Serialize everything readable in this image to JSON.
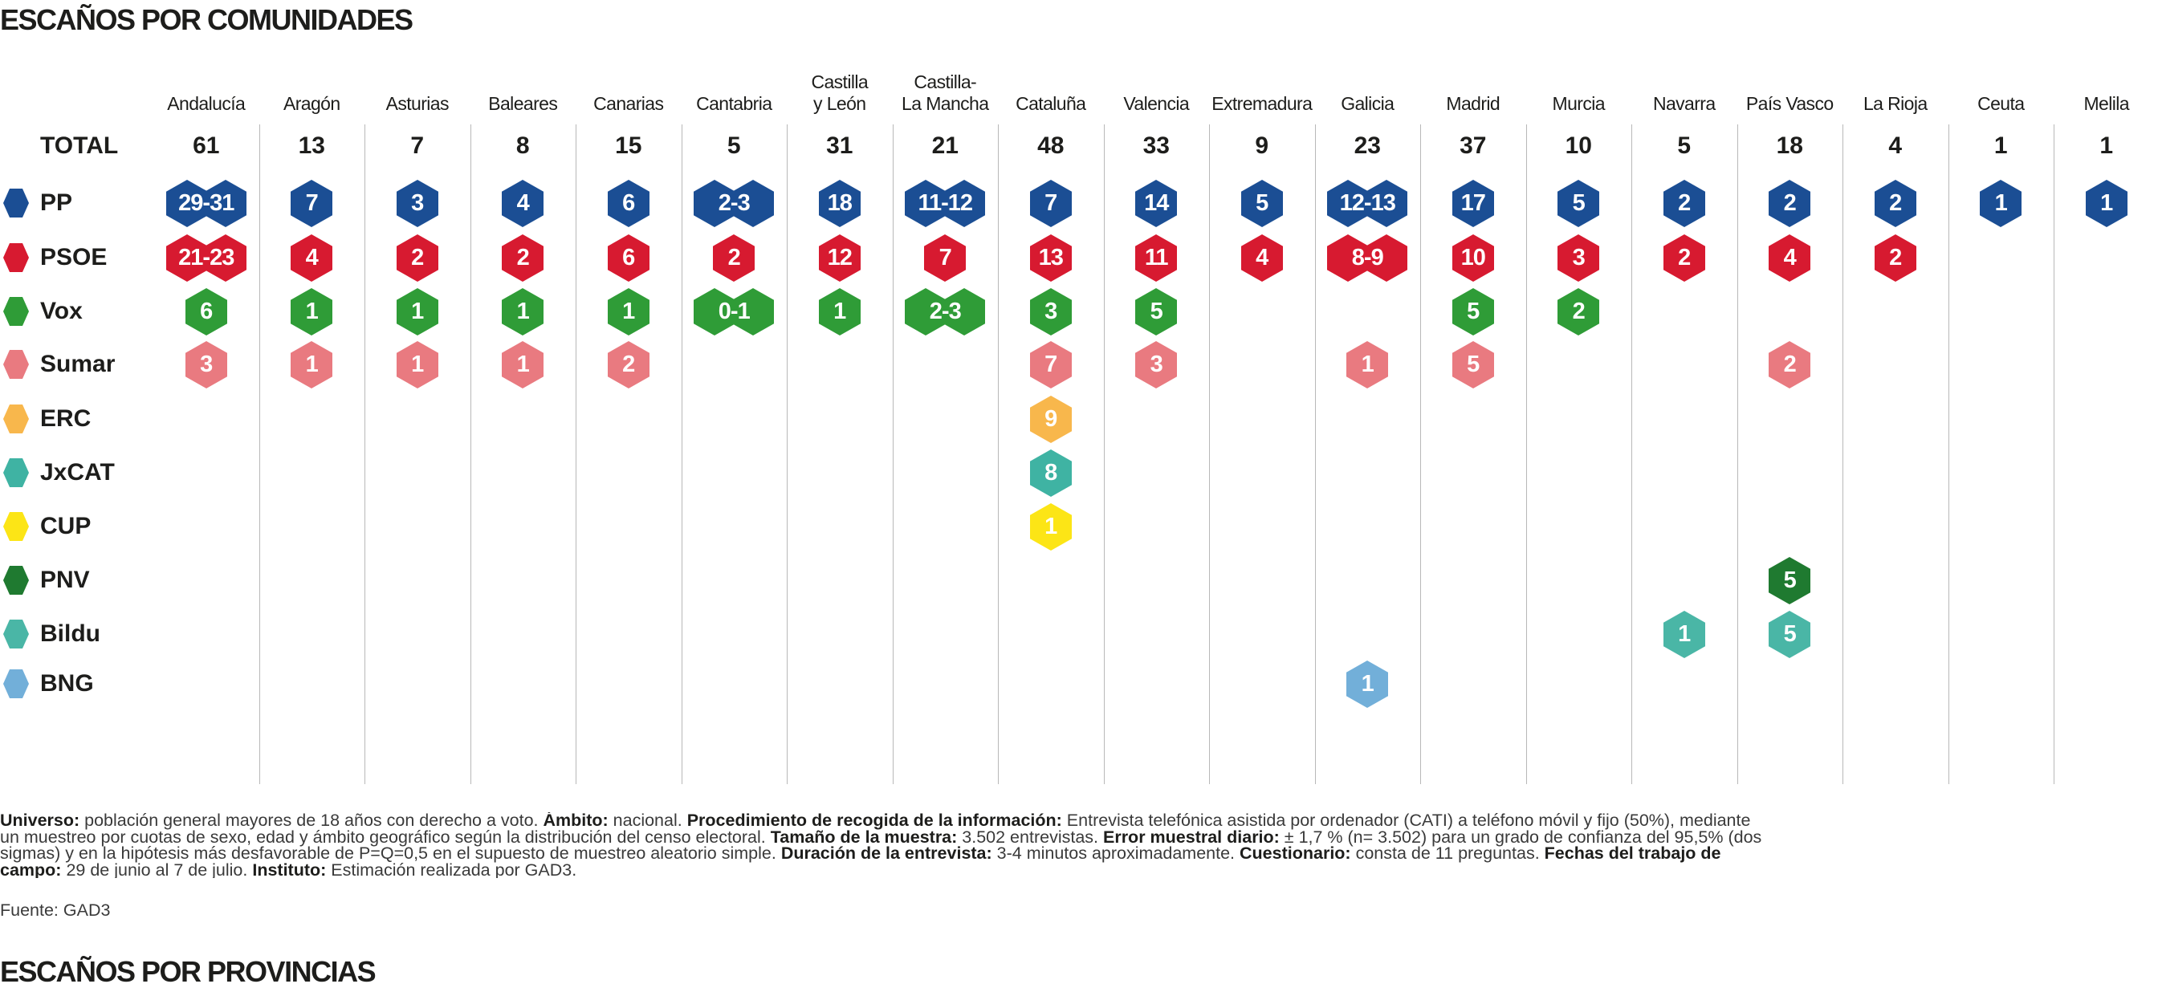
{
  "title": "ESCAÑOS POR COMUNIDADES",
  "next_section_title": "ESCAÑOS POR PROVINCIAS",
  "total_label": "TOTAL",
  "parties": [
    {
      "name": "PP",
      "color": "#1b4e94"
    },
    {
      "name": "PSOE",
      "color": "#d71a30"
    },
    {
      "name": "Vox",
      "color": "#2f9c37"
    },
    {
      "name": "Sumar",
      "color": "#e97a80"
    },
    {
      "name": "ERC",
      "color": "#f8b74c"
    },
    {
      "name": "JxCAT",
      "color": "#3fb3a3"
    },
    {
      "name": "CUP",
      "color": "#fce516"
    },
    {
      "name": "PNV",
      "color": "#1f7a30"
    },
    {
      "name": "Bildu",
      "color": "#4ab6a6"
    },
    {
      "name": "BNG",
      "color": "#72afd9"
    }
  ],
  "chart_data": {
    "type": "table",
    "title": "ESCAÑOS POR COMUNIDADES",
    "row_labels": [
      "TOTAL",
      "PP",
      "PSOE",
      "Vox",
      "Sumar",
      "ERC",
      "JxCAT",
      "CUP",
      "PNV",
      "Bildu",
      "BNG"
    ],
    "columns": [
      {
        "name": "Andalucía",
        "total": "61",
        "seats": {
          "PP": "29-31",
          "PSOE": "21-23",
          "Vox": "6",
          "Sumar": "3"
        }
      },
      {
        "name": "Aragón",
        "total": "13",
        "seats": {
          "PP": "7",
          "PSOE": "4",
          "Vox": "1",
          "Sumar": "1"
        }
      },
      {
        "name": "Asturias",
        "total": "7",
        "seats": {
          "PP": "3",
          "PSOE": "2",
          "Vox": "1",
          "Sumar": "1"
        }
      },
      {
        "name": "Baleares",
        "total": "8",
        "seats": {
          "PP": "4",
          "PSOE": "2",
          "Vox": "1",
          "Sumar": "1"
        }
      },
      {
        "name": "Canarias",
        "total": "15",
        "seats": {
          "PP": "6",
          "PSOE": "6",
          "Vox": "1",
          "Sumar": "2"
        }
      },
      {
        "name": "Cantabria",
        "total": "5",
        "seats": {
          "PP": "2-3",
          "PSOE": "2",
          "Vox": "0-1"
        }
      },
      {
        "name": "Castilla\ny León",
        "total": "31",
        "seats": {
          "PP": "18",
          "PSOE": "12",
          "Vox": "1"
        }
      },
      {
        "name": "Castilla-\nLa Mancha",
        "total": "21",
        "seats": {
          "PP": "11-12",
          "PSOE": "7",
          "Vox": "2-3"
        }
      },
      {
        "name": "Cataluña",
        "total": "48",
        "seats": {
          "PP": "7",
          "PSOE": "13",
          "Vox": "3",
          "Sumar": "7",
          "ERC": "9",
          "JxCAT": "8",
          "CUP": "1"
        }
      },
      {
        "name": "Valencia",
        "total": "33",
        "seats": {
          "PP": "14",
          "PSOE": "11",
          "Vox": "5",
          "Sumar": "3"
        }
      },
      {
        "name": "Extremadura",
        "total": "9",
        "seats": {
          "PP": "5",
          "PSOE": "4"
        }
      },
      {
        "name": "Galicia",
        "total": "23",
        "seats": {
          "PP": "12-13",
          "PSOE": "8-9",
          "Sumar": "1",
          "BNG": "1"
        }
      },
      {
        "name": "Madrid",
        "total": "37",
        "seats": {
          "PP": "17",
          "PSOE": "10",
          "Vox": "5",
          "Sumar": "5"
        }
      },
      {
        "name": "Murcia",
        "total": "10",
        "seats": {
          "PP": "5",
          "PSOE": "3",
          "Vox": "2"
        }
      },
      {
        "name": "Navarra",
        "total": "5",
        "seats": {
          "PP": "2",
          "PSOE": "2",
          "Bildu": "1"
        }
      },
      {
        "name": "País Vasco",
        "total": "18",
        "seats": {
          "PP": "2",
          "PSOE": "4",
          "Sumar": "2",
          "PNV": "5",
          "Bildu": "5"
        }
      },
      {
        "name": "La Rioja",
        "total": "4",
        "seats": {
          "PP": "2",
          "PSOE": "2"
        }
      },
      {
        "name": "Ceuta",
        "total": "1",
        "seats": {
          "PP": "1"
        }
      },
      {
        "name": "Melila",
        "total": "1",
        "seats": {
          "PP": "1"
        }
      }
    ]
  },
  "footnote": [
    [
      {
        "b": "Universo:"
      },
      {
        "t": " población general mayores de 18 años con derecho a voto. "
      },
      {
        "b": "Ámbito:"
      },
      {
        "t": " nacional. "
      },
      {
        "b": "Procedimiento de recogida de la información:"
      },
      {
        "t": " Entrevista telefónica asistida por ordenador (CATI) a teléfono móvil y fijo (50%), mediante"
      }
    ],
    [
      {
        "t": "un muestreo por cuotas de sexo, edad y ámbito geográfico según la distribución del censo electoral. "
      },
      {
        "b": "Tamaño de la muestra:"
      },
      {
        "t": "  3.502 entrevistas. "
      },
      {
        "b": "Error muestral diario:"
      },
      {
        "t": " ± 1,7 % (n= 3.502) para un grado de confianza del 95,5% (dos"
      }
    ],
    [
      {
        "t": "sigmas) y en la hipótesis más desfavorable de P=Q=0,5 en el supuesto de muestreo aleatorio simple. "
      },
      {
        "b": "Duración de la entrevista:"
      },
      {
        "t": " 3-4 minutos aproximadamente. "
      },
      {
        "b": "Cuestionario:"
      },
      {
        "t": " consta de 11 preguntas. "
      },
      {
        "b": "Fechas del trabajo de"
      }
    ],
    [
      {
        "b": "campo:"
      },
      {
        "t": " 29 de junio al 7 de julio. "
      },
      {
        "b": "Instituto:"
      },
      {
        "t": " Estimación realizada por GAD3."
      }
    ]
  ],
  "source": "Fuente: GAD3"
}
